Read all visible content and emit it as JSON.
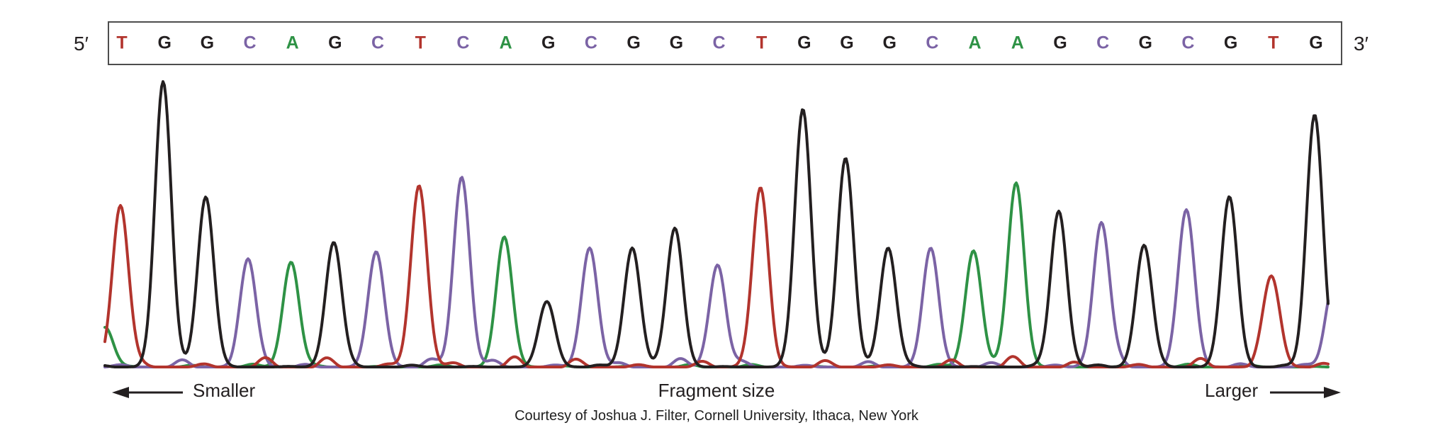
{
  "header": {
    "five_prime": "5′",
    "three_prime": "3′"
  },
  "sequence": {
    "bases": [
      "T",
      "G",
      "G",
      "C",
      "A",
      "G",
      "C",
      "T",
      "C",
      "A",
      "G",
      "C",
      "G",
      "G",
      "C",
      "T",
      "G",
      "G",
      "G",
      "C",
      "A",
      "A",
      "G",
      "C",
      "G",
      "C",
      "G",
      "T",
      "G"
    ],
    "colors": {
      "A": "#2e9245",
      "C": "#7b63a5",
      "G": "#231f20",
      "T": "#b2342d"
    }
  },
  "chart_data": {
    "type": "line",
    "description": "Sanger sequencing chromatogram: one fluorescence peak per base call, peak color encodes the base (A green, C purple, G black, T red). Heights are relative intensity (1.0 = tallest peak).",
    "x_axis_labels": {
      "left": "Smaller",
      "center": "Fragment size",
      "right": "Larger"
    },
    "legend": "none",
    "grid": "off",
    "peaks": [
      {
        "base": "T",
        "height": 0.57
      },
      {
        "base": "G",
        "height": 1.0
      },
      {
        "base": "G",
        "height": 0.6
      },
      {
        "base": "C",
        "height": 0.36
      },
      {
        "base": "A",
        "height": 0.37
      },
      {
        "base": "G",
        "height": 0.44
      },
      {
        "base": "C",
        "height": 0.4
      },
      {
        "base": "T",
        "height": 0.64
      },
      {
        "base": "C",
        "height": 0.67
      },
      {
        "base": "A",
        "height": 0.45
      },
      {
        "base": "G",
        "height": 0.23
      },
      {
        "base": "C",
        "height": 0.42
      },
      {
        "base": "G",
        "height": 0.42
      },
      {
        "base": "G",
        "height": 0.49
      },
      {
        "base": "C",
        "height": 0.36
      },
      {
        "base": "T",
        "height": 0.6
      },
      {
        "base": "G",
        "height": 0.91
      },
      {
        "base": "G",
        "height": 0.73
      },
      {
        "base": "G",
        "height": 0.42
      },
      {
        "base": "C",
        "height": 0.39
      },
      {
        "base": "A",
        "height": 0.41
      },
      {
        "base": "A",
        "height": 0.65
      },
      {
        "base": "G",
        "height": 0.55
      },
      {
        "base": "C",
        "height": 0.51
      },
      {
        "base": "G",
        "height": 0.43
      },
      {
        "base": "C",
        "height": 0.54
      },
      {
        "base": "G",
        "height": 0.6
      },
      {
        "base": "T",
        "height": 0.31
      },
      {
        "base": "G",
        "height": 0.89
      }
    ],
    "edge_bumps": [
      {
        "channel": "A",
        "pos": -0.36,
        "h": 0.14
      },
      {
        "channel": "C",
        "pos": 28.45,
        "h": 0.3
      }
    ],
    "noise": {
      "T": {
        "amp": 15,
        "phase": 0.0
      },
      "C": {
        "amp": 12,
        "phase": 2.1
      },
      "A": {
        "amp": 4,
        "phase": 1.2
      },
      "G": {
        "amp": 3,
        "phase": 4.0
      }
    }
  },
  "axis": {
    "smaller": "Smaller",
    "fragment_size": "Fragment size",
    "larger": "Larger"
  },
  "footer": {
    "caption": "Courtesy of Joshua J. Filter, Cornell University, Ithaca, New York"
  }
}
